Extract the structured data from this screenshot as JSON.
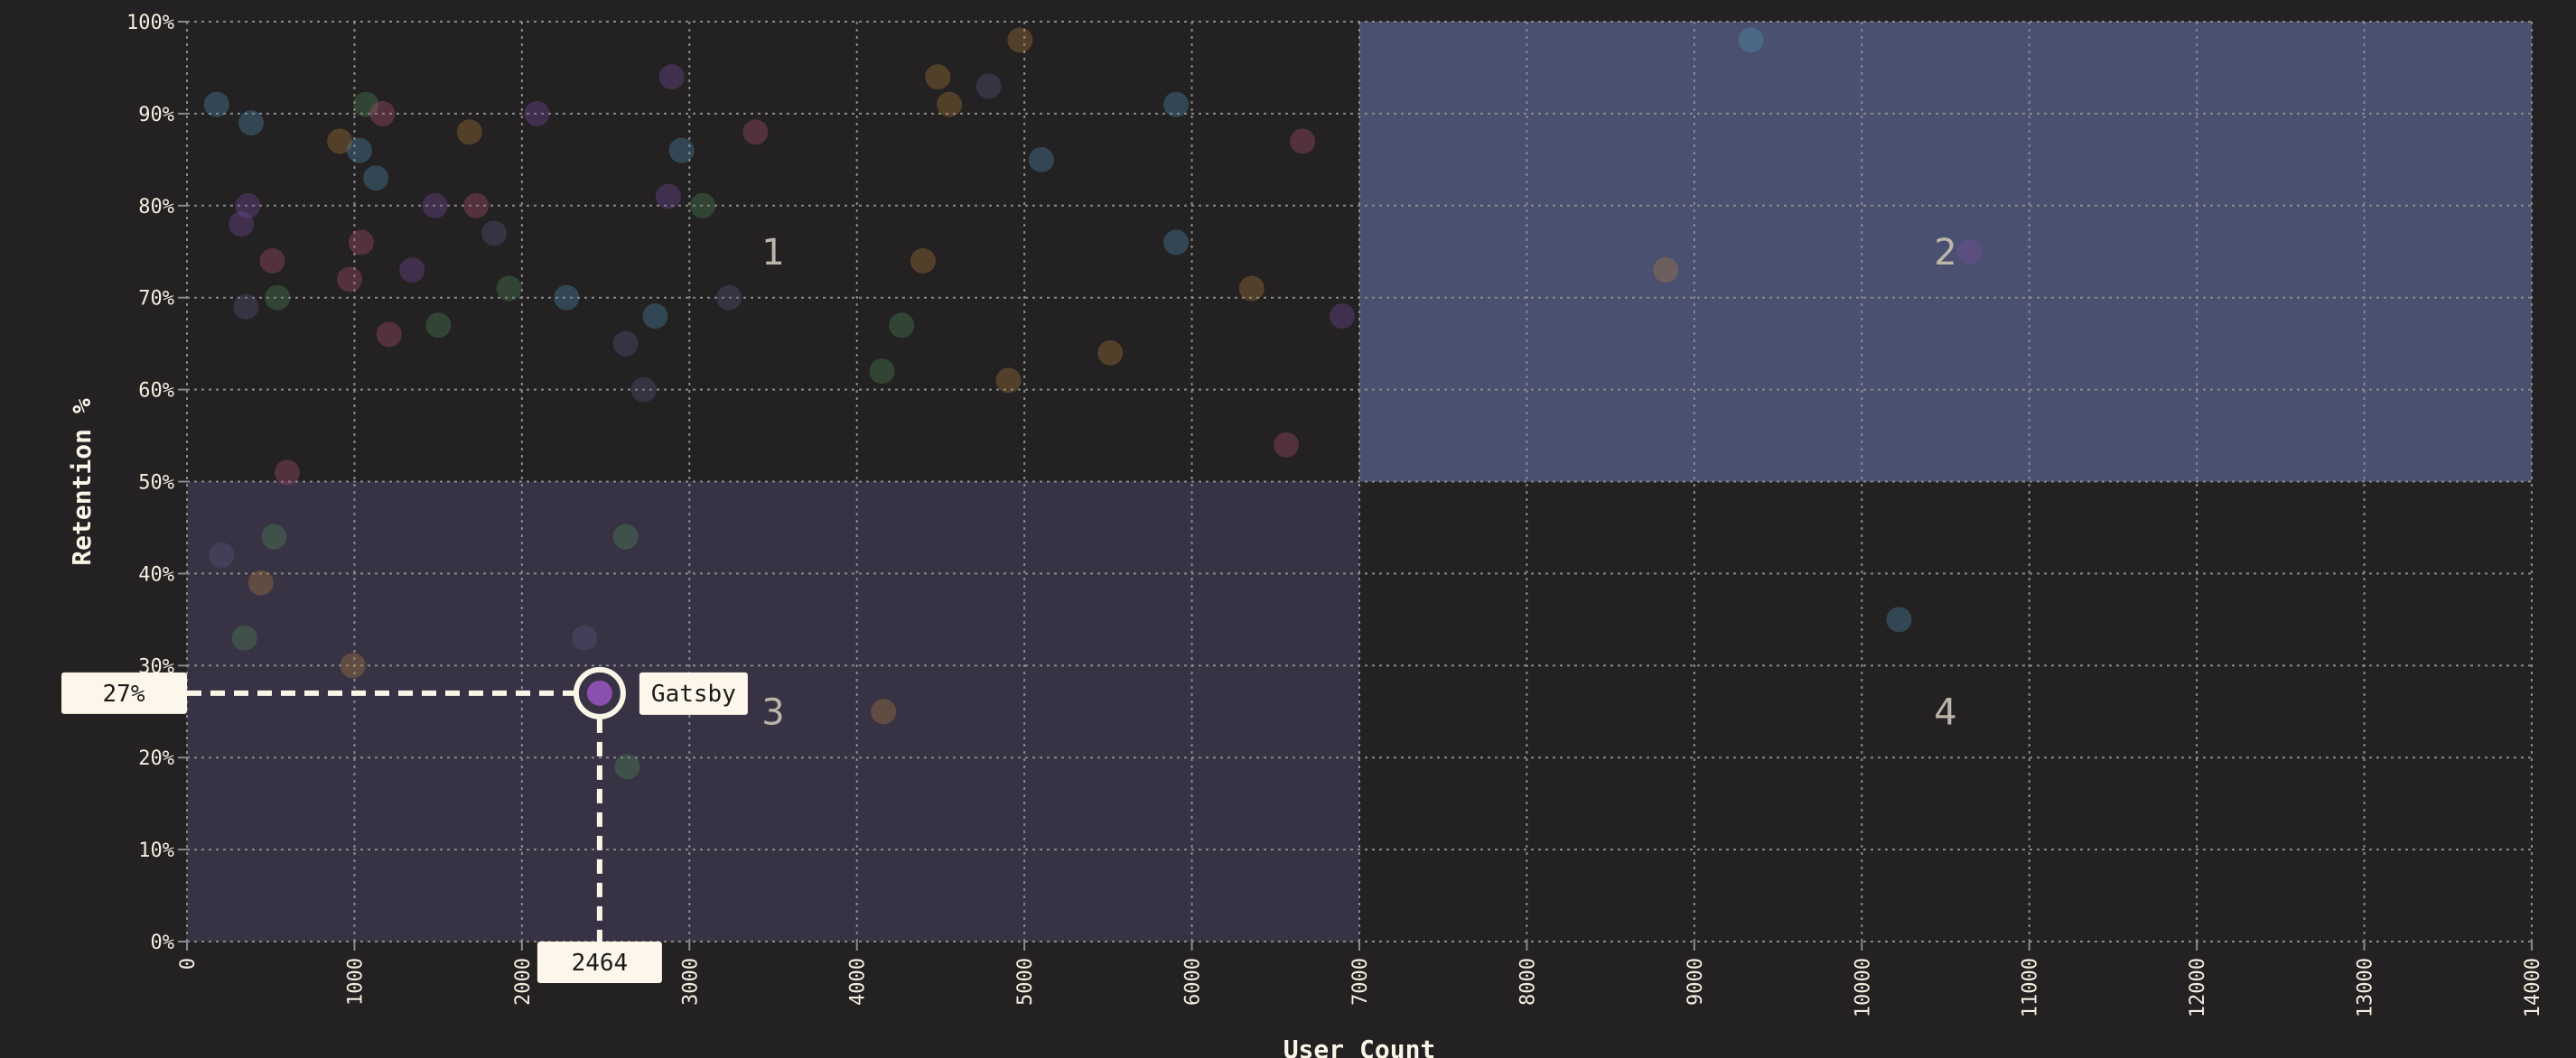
{
  "chart_data": {
    "type": "scatter",
    "xlabel": "User Count",
    "ylabel": "Retention %",
    "xlim": [
      0,
      14000
    ],
    "ylim": [
      0,
      100
    ],
    "x_ticks": [
      "0",
      "1000",
      "2000",
      "3000",
      "4000",
      "5000",
      "6000",
      "7000",
      "8000",
      "9000",
      "10000",
      "11000",
      "12000",
      "13000",
      "14000"
    ],
    "y_ticks": [
      "0%",
      "10%",
      "20%",
      "30%",
      "40%",
      "50%",
      "60%",
      "70%",
      "80%",
      "90%",
      "100%"
    ],
    "grid": true,
    "quadrant_split": {
      "x": 7000,
      "y": 50
    },
    "quadrants": [
      {
        "label": "1",
        "x_range": [
          0,
          7000
        ],
        "y_range": [
          50,
          100
        ],
        "color": "#232122"
      },
      {
        "label": "2",
        "x_range": [
          7000,
          14000
        ],
        "y_range": [
          50,
          100
        ],
        "color": "#4a5070"
      },
      {
        "label": "3",
        "x_range": [
          0,
          7000
        ],
        "y_range": [
          0,
          50
        ],
        "color": "#373344"
      },
      {
        "label": "4",
        "x_range": [
          7000,
          14000
        ],
        "y_range": [
          0,
          50
        ],
        "color": "#232122"
      }
    ],
    "palette": {
      "teal": "#4f8fae",
      "green": "#4f8a55",
      "maroon": "#b0506f",
      "purple": "#7a4aa0",
      "brown": "#b07a3a",
      "slate": "#5a5a80"
    },
    "points": [
      [
        177,
        91,
        "teal"
      ],
      [
        383,
        89,
        "teal"
      ],
      [
        363,
        80,
        "purple"
      ],
      [
        324,
        78,
        "purple"
      ],
      [
        353,
        69,
        "slate"
      ],
      [
        510,
        74,
        "maroon"
      ],
      [
        540,
        70,
        "green"
      ],
      [
        598,
        51,
        "maroon"
      ],
      [
        912,
        87,
        "brown"
      ],
      [
        1030,
        86,
        "teal"
      ],
      [
        1069,
        91,
        "green"
      ],
      [
        1167,
        90,
        "maroon"
      ],
      [
        1128,
        83,
        "teal"
      ],
      [
        1040,
        76,
        "maroon"
      ],
      [
        971,
        72,
        "maroon"
      ],
      [
        1207,
        66,
        "maroon"
      ],
      [
        1344,
        73,
        "purple"
      ],
      [
        1481,
        80,
        "purple"
      ],
      [
        1501,
        67,
        "green"
      ],
      [
        1687,
        88,
        "brown"
      ],
      [
        1727,
        80,
        "maroon"
      ],
      [
        1834,
        77,
        "slate"
      ],
      [
        1923,
        71,
        "green"
      ],
      [
        2090,
        90,
        "purple"
      ],
      [
        2266,
        70,
        "teal"
      ],
      [
        2619,
        65,
        "slate"
      ],
      [
        2727,
        60,
        "slate"
      ],
      [
        2796,
        68,
        "teal"
      ],
      [
        2874,
        81,
        "purple"
      ],
      [
        2894,
        94,
        "purple"
      ],
      [
        2953,
        86,
        "teal"
      ],
      [
        3080,
        80,
        "green"
      ],
      [
        3237,
        70,
        "slate"
      ],
      [
        3394,
        88,
        "maroon"
      ],
      [
        4150,
        62,
        "green"
      ],
      [
        4267,
        67,
        "green"
      ],
      [
        4395,
        74,
        "brown"
      ],
      [
        4483,
        94,
        "brown"
      ],
      [
        4552,
        91,
        "brown"
      ],
      [
        4787,
        93,
        "slate"
      ],
      [
        4905,
        61,
        "brown"
      ],
      [
        4974,
        98,
        "brown"
      ],
      [
        5101,
        85,
        "teal"
      ],
      [
        5513,
        64,
        "brown"
      ],
      [
        5906,
        91,
        "teal"
      ],
      [
        5906,
        76,
        "teal"
      ],
      [
        6357,
        71,
        "brown"
      ],
      [
        6563,
        54,
        "maroon"
      ],
      [
        6661,
        87,
        "maroon"
      ],
      [
        6897,
        68,
        "purple"
      ],
      [
        9339,
        98,
        "teal"
      ],
      [
        8829,
        73,
        "brown"
      ],
      [
        10644,
        75,
        "purple"
      ],
      [
        206,
        42,
        "slate"
      ],
      [
        520,
        44,
        "green"
      ],
      [
        441,
        39,
        "brown"
      ],
      [
        343,
        33,
        "green"
      ],
      [
        991,
        30,
        "brown"
      ],
      [
        2374,
        33,
        "slate"
      ],
      [
        2619,
        44,
        "green"
      ],
      [
        2629,
        19,
        "green"
      ],
      [
        4159,
        25,
        "brown"
      ],
      [
        10222,
        35,
        "teal"
      ]
    ],
    "highlight": {
      "name": "Gatsby",
      "x": 2464,
      "y": 27,
      "x_label": "2464",
      "y_label": "27%",
      "color": "#8b4fb0"
    }
  }
}
